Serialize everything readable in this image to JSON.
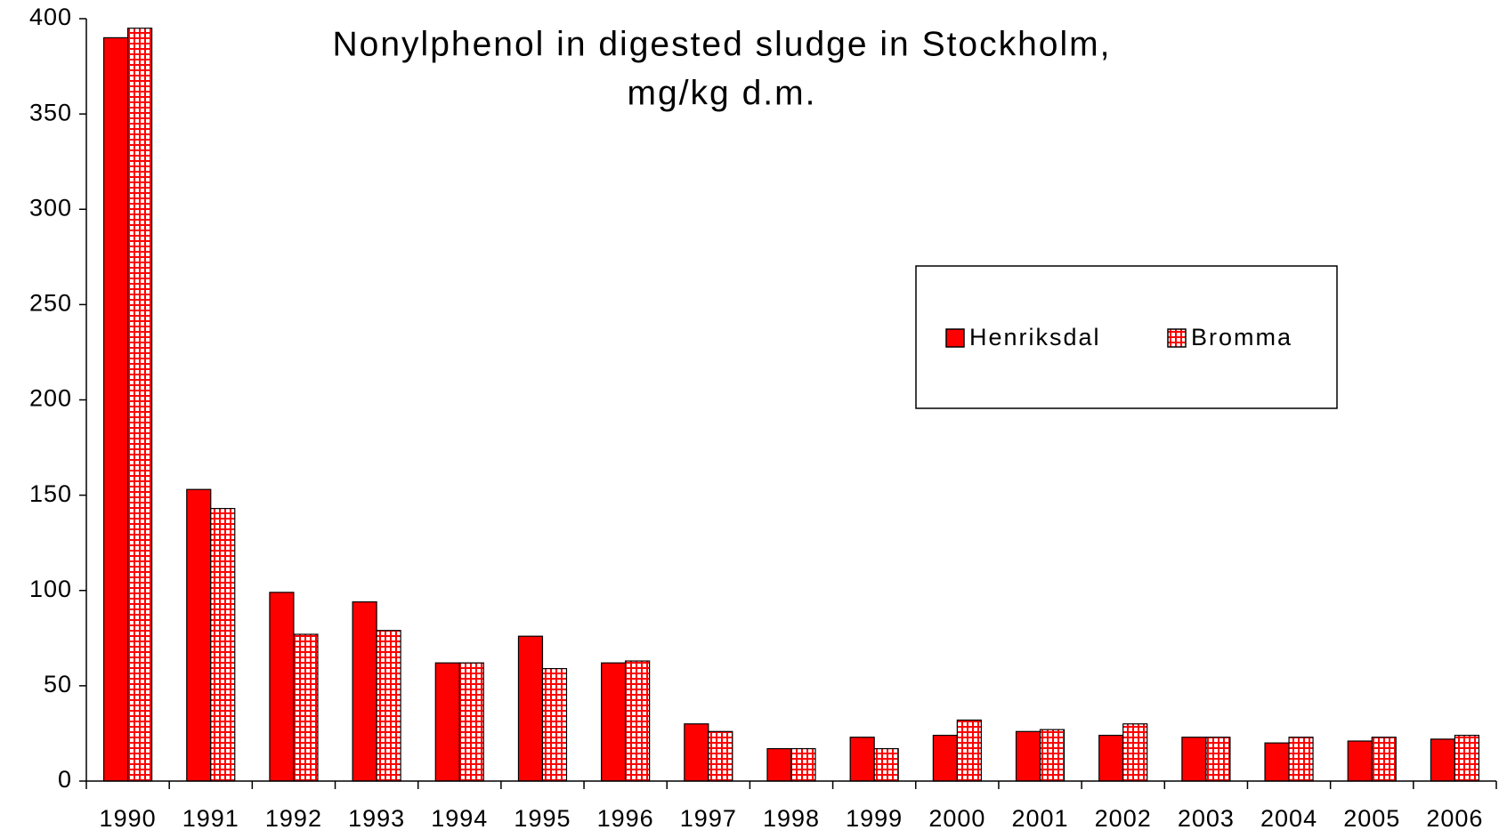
{
  "chart_data": {
    "type": "bar",
    "title": "Nonylphenol in digested sludge in Stockholm,",
    "subtitle": "mg/kg d.m.",
    "categories": [
      "1990",
      "1991",
      "1992",
      "1993",
      "1994",
      "1995",
      "1996",
      "1997",
      "1998",
      "1999",
      "2000",
      "2001",
      "2002",
      "2003",
      "2004",
      "2005",
      "2006"
    ],
    "series": [
      {
        "name": "Henriksdal",
        "color": "#ff0000",
        "pattern": "solid",
        "values": [
          390,
          153,
          99,
          94,
          62,
          76,
          62,
          30,
          17,
          23,
          24,
          26,
          24,
          23,
          20,
          21,
          22
        ]
      },
      {
        "name": "Bromma",
        "color": "#ff0000",
        "pattern": "grid",
        "values": [
          395,
          143,
          77,
          79,
          62,
          59,
          63,
          26,
          17,
          17,
          32,
          27,
          30,
          23,
          23,
          23,
          24
        ]
      }
    ],
    "ylim": [
      0,
      400
    ],
    "yticks": [
      0,
      50,
      100,
      150,
      200,
      250,
      300,
      350,
      400
    ],
    "grid": false,
    "legend": "right"
  }
}
